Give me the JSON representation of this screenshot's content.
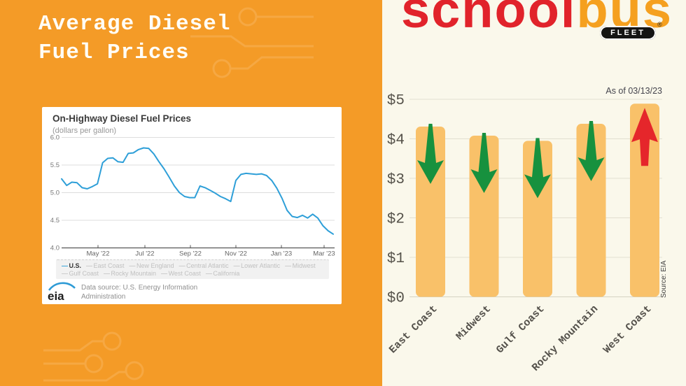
{
  "left_panel": {
    "title": "Average Diesel\nFuel Prices",
    "eia_card": {
      "title": "On-Highway Diesel Fuel Prices",
      "subtitle": "(dollars per gallon)",
      "eia_logo_text": "eia",
      "source_line1": "Data source: U.S. Energy Information",
      "source_line2": "Administration",
      "legend_items": [
        {
          "label": "U.S.",
          "active": true
        },
        {
          "label": "East Coast",
          "active": false
        },
        {
          "label": "New England",
          "active": false
        },
        {
          "label": "Central Atlantic",
          "active": false
        },
        {
          "label": "Lower Atlantic",
          "active": false
        },
        {
          "label": "Midwest",
          "active": false
        },
        {
          "label": "Gulf Coast",
          "active": false
        },
        {
          "label": "Rocky Mountain",
          "active": false
        },
        {
          "label": "West Coast",
          "active": false
        },
        {
          "label": "California",
          "active": false
        }
      ]
    }
  },
  "right_panel": {
    "logo": {
      "part1": "school",
      "part2": "bus",
      "badge": "FLEET",
      "registered": "®"
    },
    "as_of": "As of 03/13/23",
    "source": "Source: EIA"
  },
  "chart_data": [
    {
      "type": "line",
      "title": "On-Highway Diesel Fuel Prices",
      "ylabel": "(dollars per gallon)",
      "ylim": [
        4.0,
        6.0
      ],
      "yticks": [
        6.0,
        5.5,
        5.0,
        4.5,
        4.0
      ],
      "xticks": [
        "May '22",
        "Jul '22",
        "Sep '22",
        "Nov '22",
        "Jan '23",
        "Mar '23"
      ],
      "x_range": "weekly, mid-Mar 2022 to Mar 13 2023",
      "grid": true,
      "legend_position": "bottom",
      "series": [
        {
          "name": "U.S.",
          "values": [
            5.25,
            5.13,
            5.19,
            5.18,
            5.09,
            5.07,
            5.11,
            5.16,
            5.54,
            5.62,
            5.63,
            5.56,
            5.55,
            5.71,
            5.72,
            5.78,
            5.81,
            5.8,
            5.7,
            5.56,
            5.43,
            5.28,
            5.12,
            5.0,
            4.93,
            4.91,
            4.91,
            5.12,
            5.09,
            5.04,
            4.99,
            4.93,
            4.89,
            4.84,
            5.22,
            5.33,
            5.35,
            5.34,
            5.33,
            5.34,
            5.31,
            5.22,
            5.08,
            4.9,
            4.68,
            4.57,
            4.55,
            4.59,
            4.54,
            4.61,
            4.54,
            4.4,
            4.31,
            4.25
          ]
        }
      ]
    },
    {
      "type": "bar",
      "categories": [
        "East Coast",
        "Midwest",
        "Gulf Coast",
        "Rocky Mountain",
        "West Coast"
      ],
      "values": [
        4.31,
        4.08,
        3.95,
        4.38,
        4.89
      ],
      "trend": [
        "down",
        "down",
        "down",
        "down",
        "up"
      ],
      "ylim": [
        0,
        5
      ],
      "yticks": [
        "$0",
        "$1",
        "$2",
        "$3",
        "$4",
        "$5"
      ],
      "annotation": "As of 03/13/23",
      "source": "Source: EIA",
      "grid": true
    }
  ],
  "colors": {
    "left_bg": "#F49B27",
    "decor": "#F6A843",
    "card_bg": "#FFFFFF",
    "line": "#2E9FD8",
    "grid_left": "#DDDDDD",
    "axis": "#555555",
    "right_bg": "#FAF8EB",
    "grid_right": "#E2DFD0",
    "bar": "#F9C169",
    "arrow_down": "#17913E",
    "arrow_up": "#E5262B",
    "logo_red": "#E1232B",
    "logo_orange": "#F5A01F",
    "eia_blue": "#2E9BD6"
  }
}
